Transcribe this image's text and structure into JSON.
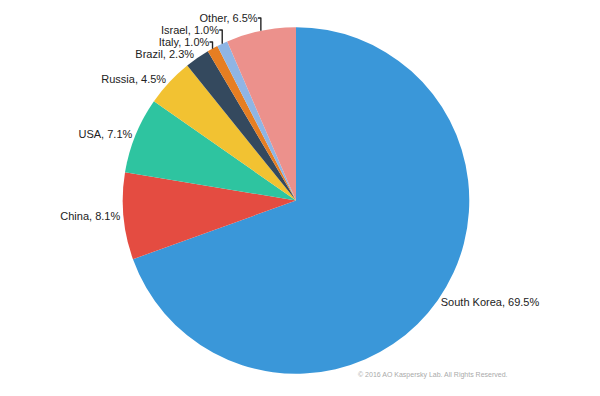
{
  "chart_data": {
    "type": "pie",
    "categories": [
      "South Korea",
      "China",
      "USA",
      "Russia",
      "Brazil",
      "Italy",
      "Israel",
      "Other"
    ],
    "values": [
      69.5,
      8.1,
      7.1,
      4.5,
      2.3,
      1.0,
      1.0,
      6.5
    ],
    "value_labels": [
      "South Korea, 69.5%",
      "China, 8.1%",
      "USA, 7.1%",
      "Russia, 4.5%",
      "Brazil, 2.3%",
      "Italy, 1.0%",
      "Israel, 1.0%",
      "Other, 6.5%"
    ],
    "colors": [
      "#3a97d9",
      "#e44c41",
      "#2ec4a0",
      "#f2c232",
      "#34495e",
      "#e67e22",
      "#8fb5e4",
      "#ec918c"
    ],
    "annotations": [
      "© 2016 AO Kaspersky Lab. All Rights Reserved."
    ],
    "legend": false
  }
}
